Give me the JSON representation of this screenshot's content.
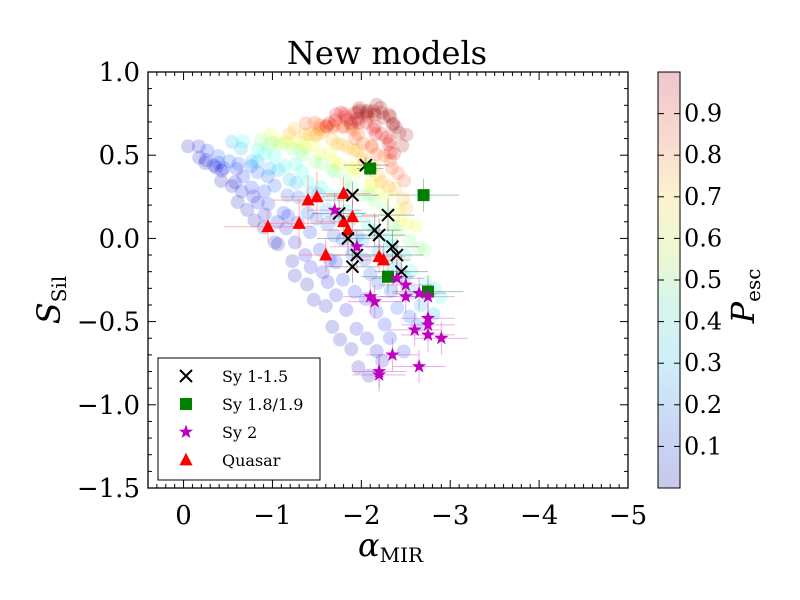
{
  "chart_data": {
    "type": "scatter",
    "title": "New models",
    "xlabel": {
      "main": "α",
      "sub": "MIR"
    },
    "ylabel": {
      "main": "S",
      "sub": "Sil"
    },
    "xlim": [
      0.4,
      -5.0
    ],
    "ylim": [
      -1.5,
      1.0
    ],
    "xticks": [
      0,
      -1,
      -2,
      -3,
      -4,
      -5
    ],
    "xtick_labels": [
      "0",
      "−1",
      "−2",
      "−3",
      "−4",
      "−5"
    ],
    "yticks": [
      1.0,
      0.5,
      0.0,
      -0.5,
      -1.0,
      -1.5
    ],
    "ytick_labels": [
      "1.0",
      "0.5",
      "0.0",
      "−0.5",
      "−1.0",
      "−1.5"
    ],
    "colorbar": {
      "label": {
        "main": "P",
        "sub": "esc"
      },
      "range": [
        0.0,
        1.0
      ],
      "ticks": [
        0.1,
        0.2,
        0.3,
        0.4,
        0.5,
        0.6,
        0.7,
        0.8,
        0.9
      ],
      "tick_labels": [
        "0.1",
        "0.2",
        "0.3",
        "0.4",
        "0.5",
        "0.6",
        "0.7",
        "0.8",
        "0.9"
      ],
      "colormap": "jet"
    },
    "legend": {
      "placement": "lower-left",
      "entries": [
        {
          "label": "Sy 1-1.5",
          "marker": "x",
          "color": "#000000"
        },
        {
          "label": "Sy 1.8/1.9",
          "marker": "square",
          "color": "#008000"
        },
        {
          "label": "Sy 2",
          "marker": "star",
          "color": "#bf00bf"
        },
        {
          "label": "Quasar",
          "marker": "triangle",
          "color": "#ff0000"
        }
      ]
    },
    "models": {
      "note": "translucent model points coloured by P_esc; tracks go from (x0,y0) to (x1,y1)",
      "tracks": [
        {
          "pesc": 0.05,
          "x0": -0.05,
          "y0": 0.55,
          "x1": -2.05,
          "y1": -0.85
        },
        {
          "pesc": 0.1,
          "x0": -0.15,
          "y0": 0.53,
          "x1": -2.25,
          "y1": -0.75
        },
        {
          "pesc": 0.15,
          "x0": -0.25,
          "y0": 0.5,
          "x1": -2.45,
          "y1": -0.65
        },
        {
          "pesc": 0.2,
          "x0": -0.4,
          "y0": 0.52,
          "x1": -2.65,
          "y1": -0.55
        },
        {
          "pesc": 0.3,
          "x0": -0.55,
          "y0": 0.55,
          "x1": -2.8,
          "y1": -0.45
        },
        {
          "pesc": 0.4,
          "x0": -0.7,
          "y0": 0.58,
          "x1": -2.9,
          "y1": -0.38
        },
        {
          "pesc": 0.5,
          "x0": -0.85,
          "y0": 0.6,
          "x1": -2.7,
          "y1": -0.1
        },
        {
          "pesc": 0.6,
          "x0": -1.0,
          "y0": 0.62,
          "x1": -2.6,
          "y1": 0.05
        },
        {
          "pesc": 0.7,
          "x0": -1.2,
          "y0": 0.65,
          "x1": -2.5,
          "y1": 0.2
        },
        {
          "pesc": 0.8,
          "x0": -1.4,
          "y0": 0.68,
          "x1": -2.45,
          "y1": 0.35
        },
        {
          "pesc": 0.9,
          "x0": -1.6,
          "y0": 0.7,
          "x1": -2.4,
          "y1": 0.5
        },
        {
          "pesc": 0.97,
          "x0": -1.9,
          "y0": 0.72,
          "x1": -2.5,
          "y1": 0.58
        }
      ],
      "points_per_track": 22
    },
    "observations": {
      "sy1": [
        {
          "x": -2.05,
          "y": 0.44,
          "xerr": 0.25,
          "yerr": 0.05
        },
        {
          "x": -1.9,
          "y": 0.26,
          "xerr": 0.3,
          "yerr": 0.08
        },
        {
          "x": -1.75,
          "y": 0.15,
          "xerr": 0.3,
          "yerr": 0.08
        },
        {
          "x": -1.85,
          "y": 0.0,
          "xerr": 0.35,
          "yerr": 0.1
        },
        {
          "x": -2.15,
          "y": 0.05,
          "xerr": 0.3,
          "yerr": 0.1
        },
        {
          "x": -2.2,
          "y": 0.02,
          "xerr": 0.3,
          "yerr": 0.1
        },
        {
          "x": -2.3,
          "y": 0.14,
          "xerr": 0.3,
          "yerr": 0.1
        },
        {
          "x": -2.35,
          "y": -0.05,
          "xerr": 0.3,
          "yerr": 0.1
        },
        {
          "x": -2.4,
          "y": -0.1,
          "xerr": 0.3,
          "yerr": 0.1
        },
        {
          "x": -1.95,
          "y": -0.1,
          "xerr": 0.3,
          "yerr": 0.1
        },
        {
          "x": -1.9,
          "y": -0.17,
          "xerr": 0.3,
          "yerr": 0.1
        },
        {
          "x": -2.45,
          "y": -0.2,
          "xerr": 0.3,
          "yerr": 0.1
        }
      ],
      "sy18": [
        {
          "x": -2.1,
          "y": 0.42,
          "xerr": 0.15,
          "yerr": 0.05
        },
        {
          "x": -2.7,
          "y": 0.26,
          "xerr": 0.4,
          "yerr": 0.1
        },
        {
          "x": -2.3,
          "y": -0.23,
          "xerr": 0.3,
          "yerr": 0.1
        },
        {
          "x": -2.75,
          "y": -0.32,
          "xerr": 0.4,
          "yerr": 0.1
        }
      ],
      "sy2": [
        {
          "x": -1.7,
          "y": 0.17,
          "xerr": 0.3,
          "yerr": 0.1
        },
        {
          "x": -1.95,
          "y": -0.05,
          "xerr": 0.3,
          "yerr": 0.1
        },
        {
          "x": -2.1,
          "y": -0.35,
          "xerr": 0.3,
          "yerr": 0.1
        },
        {
          "x": -2.15,
          "y": -0.38,
          "xerr": 0.3,
          "yerr": 0.1
        },
        {
          "x": -2.4,
          "y": -0.24,
          "xerr": 0.3,
          "yerr": 0.1
        },
        {
          "x": -2.5,
          "y": -0.28,
          "xerr": 0.3,
          "yerr": 0.1
        },
        {
          "x": -2.5,
          "y": -0.35,
          "xerr": 0.3,
          "yerr": 0.1
        },
        {
          "x": -2.65,
          "y": -0.33,
          "xerr": 0.3,
          "yerr": 0.1
        },
        {
          "x": -2.6,
          "y": -0.55,
          "xerr": 0.3,
          "yerr": 0.1
        },
        {
          "x": -2.75,
          "y": -0.48,
          "xerr": 0.3,
          "yerr": 0.1
        },
        {
          "x": -2.75,
          "y": -0.52,
          "xerr": 0.3,
          "yerr": 0.1
        },
        {
          "x": -2.75,
          "y": -0.58,
          "xerr": 0.3,
          "yerr": 0.1
        },
        {
          "x": -2.9,
          "y": -0.6,
          "xerr": 0.3,
          "yerr": 0.1
        },
        {
          "x": -2.35,
          "y": -0.7,
          "xerr": 0.3,
          "yerr": 0.1
        },
        {
          "x": -2.65,
          "y": -0.77,
          "xerr": 0.3,
          "yerr": 0.1
        },
        {
          "x": -2.2,
          "y": -0.8,
          "xerr": 0.3,
          "yerr": 0.1
        },
        {
          "x": -2.2,
          "y": -0.82,
          "xerr": 0.3,
          "yerr": 0.1
        },
        {
          "x": -2.75,
          "y": -0.35,
          "xerr": 0.3,
          "yerr": 0.1
        }
      ],
      "quasar": [
        {
          "x": -0.95,
          "y": 0.07,
          "xerr": 0.5,
          "yerr": 0.1
        },
        {
          "x": -1.4,
          "y": 0.23,
          "xerr": 0.4,
          "yerr": 0.15
        },
        {
          "x": -1.5,
          "y": 0.25,
          "xerr": 0.4,
          "yerr": 0.15
        },
        {
          "x": -1.8,
          "y": 0.27,
          "xerr": 0.3,
          "yerr": 0.1
        },
        {
          "x": -1.3,
          "y": 0.09,
          "xerr": 0.4,
          "yerr": 0.15
        },
        {
          "x": -1.6,
          "y": -0.1,
          "xerr": 0.3,
          "yerr": 0.1
        },
        {
          "x": -1.8,
          "y": 0.1,
          "xerr": 0.3,
          "yerr": 0.1
        },
        {
          "x": -1.85,
          "y": 0.05,
          "xerr": 0.3,
          "yerr": 0.1
        },
        {
          "x": -1.9,
          "y": 0.13,
          "xerr": 0.3,
          "yerr": 0.1
        },
        {
          "x": -2.2,
          "y": -0.11,
          "xerr": 0.3,
          "yerr": 0.1
        },
        {
          "x": -2.25,
          "y": -0.13,
          "xerr": 0.3,
          "yerr": 0.1
        }
      ]
    }
  }
}
